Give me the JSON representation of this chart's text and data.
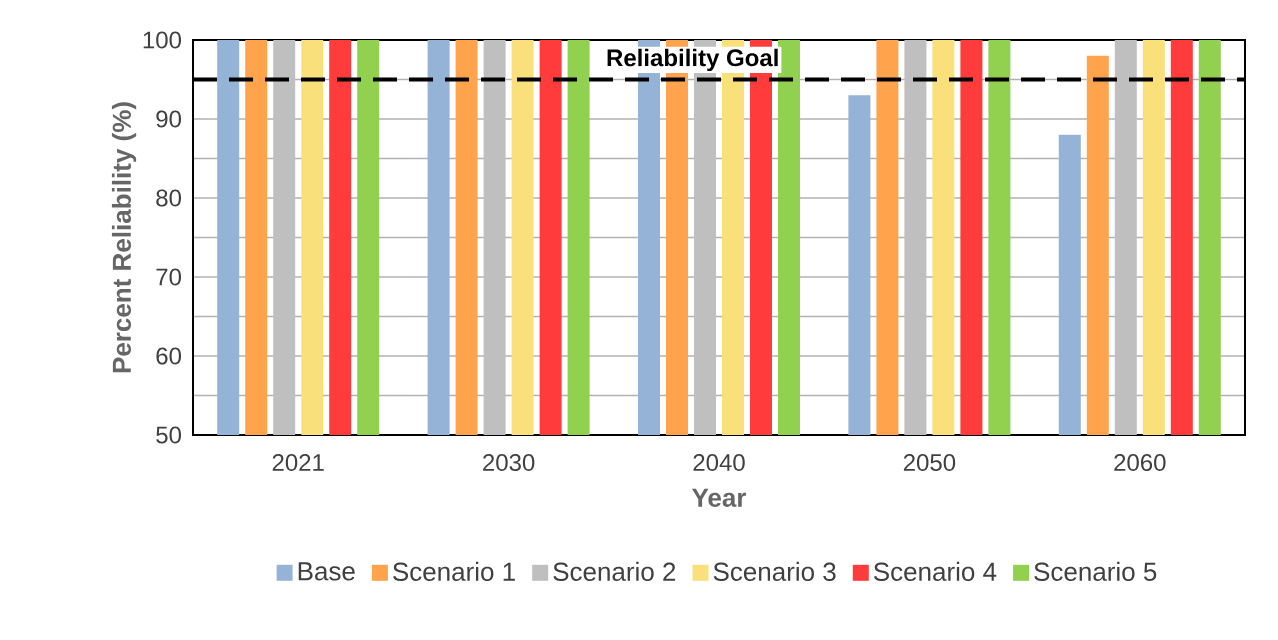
{
  "chart_data": {
    "type": "bar",
    "xlabel": "Year",
    "ylabel": "Percent Reliability (%)",
    "categories": [
      "2021",
      "2030",
      "2040",
      "2050",
      "2060"
    ],
    "series": [
      {
        "name": "Base",
        "color": "#95b3d7",
        "values": [
          100,
          100,
          100,
          93,
          88
        ]
      },
      {
        "name": "Scenario 1",
        "color": "#ffa34d",
        "values": [
          100,
          100,
          100,
          100,
          98
        ]
      },
      {
        "name": "Scenario 2",
        "color": "#bfbfbf",
        "values": [
          100,
          100,
          100,
          100,
          100
        ]
      },
      {
        "name": "Scenario 3",
        "color": "#fae07a",
        "values": [
          100,
          100,
          100,
          100,
          100
        ]
      },
      {
        "name": "Scenario 4",
        "color": "#ff3b3b",
        "values": [
          100,
          100,
          100,
          100,
          100
        ]
      },
      {
        "name": "Scenario 5",
        "color": "#92d050",
        "values": [
          100,
          100,
          100,
          100,
          100
        ]
      }
    ],
    "ylim": [
      50,
      100
    ],
    "yticks": [
      50,
      {
        "value": 55,
        "label": null
      },
      60,
      {
        "value": 65,
        "label": null
      },
      70,
      {
        "value": 75,
        "label": null
      },
      80,
      {
        "value": 85,
        "label": null
      },
      90,
      {
        "value": 95,
        "label": null
      },
      100
    ],
    "grid": "y",
    "legend": "bottom",
    "ref_lines": [
      {
        "axis": "y",
        "value": 95,
        "label": "Reliability Goal",
        "color": "#000000",
        "line_style": "dashed"
      }
    ]
  }
}
